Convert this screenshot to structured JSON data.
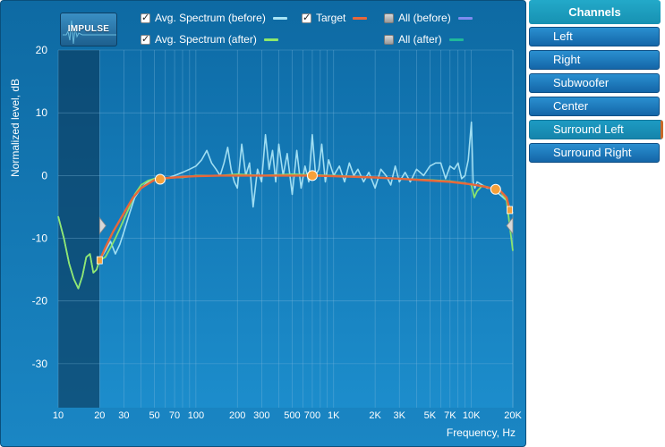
{
  "toolbar": {
    "impulse_label": "IMPULSE"
  },
  "legend": [
    {
      "label": "Avg. Spectrum (before)",
      "checked": true,
      "color": "#a8e4f5"
    },
    {
      "label": "Target",
      "checked": true,
      "color": "#e8673a"
    },
    {
      "label": "All (before)",
      "checked": false,
      "color": "#7f8cf0"
    },
    {
      "label": "Avg. Spectrum (after)",
      "checked": true,
      "color": "#8ee86a"
    },
    {
      "label": "All (after)",
      "checked": false,
      "color": "#1fb89a"
    }
  ],
  "channels": {
    "header": "Channels",
    "items": [
      "Left",
      "Right",
      "Subwoofer",
      "Center",
      "Surround Left",
      "Surround Right"
    ],
    "active": "Surround Left"
  },
  "colors": {
    "panel_bg": "#1477b6",
    "grid": "#7fb9dd",
    "before": "#a8e4f5",
    "after": "#8ee86a",
    "target": "#e8673a",
    "control_point": "#f5a03a",
    "excluded_region": "#0b3f63"
  },
  "chart_data": {
    "type": "line",
    "xlabel": "Frequency, Hz",
    "ylabel": "Normalized level, dB",
    "x_scale": "log",
    "xlim": [
      10,
      20000
    ],
    "ylim": [
      -37,
      20
    ],
    "grid": true,
    "x_ticks": [
      {
        "v": 10,
        "label": "10"
      },
      {
        "v": 20,
        "label": "20"
      },
      {
        "v": 30,
        "label": "30"
      },
      {
        "v": 50,
        "label": "50"
      },
      {
        "v": 70,
        "label": "70"
      },
      {
        "v": 100,
        "label": "100"
      },
      {
        "v": 200,
        "label": "200"
      },
      {
        "v": 300,
        "label": "300"
      },
      {
        "v": 500,
        "label": "500"
      },
      {
        "v": 700,
        "label": "700"
      },
      {
        "v": 1000,
        "label": "1K"
      },
      {
        "v": 2000,
        "label": "2K"
      },
      {
        "v": 3000,
        "label": "3K"
      },
      {
        "v": 5000,
        "label": "5K"
      },
      {
        "v": 7000,
        "label": "7K"
      },
      {
        "v": 10000,
        "label": "10K"
      },
      {
        "v": 20000,
        "label": "20K"
      }
    ],
    "y_ticks": [
      {
        "v": 20,
        "label": "20"
      },
      {
        "v": 10,
        "label": "10"
      },
      {
        "v": 0,
        "label": "0"
      },
      {
        "v": -10,
        "label": "-10"
      },
      {
        "v": -20,
        "label": "-20"
      },
      {
        "v": -30,
        "label": "-30"
      }
    ],
    "excluded_ranges": [
      [
        10,
        20
      ]
    ],
    "series": [
      {
        "key": "before",
        "x": [
          10,
          11,
          12,
          13,
          14,
          15,
          16,
          17,
          18,
          19,
          20,
          22,
          24,
          26,
          28,
          30,
          33,
          36,
          40,
          45,
          50,
          55,
          60,
          70,
          80,
          90,
          100,
          110,
          120,
          130,
          140,
          150,
          160,
          170,
          180,
          190,
          200,
          215,
          230,
          245,
          260,
          280,
          300,
          320,
          340,
          360,
          380,
          400,
          430,
          460,
          500,
          540,
          580,
          620,
          660,
          700,
          740,
          780,
          820,
          870,
          920,
          1000,
          1100,
          1200,
          1300,
          1400,
          1500,
          1650,
          1800,
          2000,
          2200,
          2400,
          2600,
          2800,
          3000,
          3300,
          3600,
          4000,
          4500,
          5000,
          5500,
          6000,
          6500,
          7000,
          7500,
          8000,
          8500,
          9000,
          9500,
          10000,
          10300,
          10600,
          11000,
          12000,
          13000,
          14000,
          15000,
          16000,
          17000,
          18000,
          19000,
          20000
        ],
        "y": [
          -6.5,
          -10,
          -14,
          -16.5,
          -18,
          -16,
          -13,
          -12.5,
          -15.5,
          -15,
          -13.5,
          -12,
          -10.5,
          -12.5,
          -11,
          -9,
          -6,
          -3.5,
          -2,
          -1,
          -0.5,
          -0.3,
          -0.5,
          0,
          0.5,
          1,
          1.5,
          2.5,
          4,
          2,
          1,
          0,
          2,
          4.5,
          1,
          -1,
          -2,
          5,
          0,
          2,
          -5,
          1,
          -1,
          6.5,
          1,
          4,
          -1,
          5,
          0,
          3.5,
          -3,
          4,
          -2,
          1.5,
          -1,
          6.5,
          0,
          1,
          5,
          -1,
          2.5,
          0,
          1.5,
          -1,
          2,
          0,
          1,
          -1,
          0.5,
          -2,
          1,
          0,
          -1.5,
          1.5,
          -1,
          0.5,
          -1,
          1,
          0,
          1.5,
          2,
          2,
          -0.5,
          1.5,
          1,
          2,
          -0.5,
          0,
          2.5,
          8.5,
          -1,
          -2,
          -1,
          -1.5,
          -2,
          -2,
          -2.5,
          -3,
          -3.5,
          -4,
          -5,
          -6
        ]
      },
      {
        "key": "after",
        "x": [
          10,
          11,
          12,
          13,
          14,
          15,
          16,
          17,
          18,
          19,
          20,
          22,
          24,
          26,
          28,
          30,
          33,
          36,
          40,
          45,
          50,
          55,
          60,
          70,
          80,
          100,
          150,
          200,
          300,
          500,
          700,
          1000,
          2000,
          3000,
          5000,
          7000,
          9000,
          10000,
          10500,
          11000,
          12000,
          14000,
          16000,
          18000,
          20000
        ],
        "y": [
          -6.5,
          -10,
          -14,
          -16.5,
          -18,
          -16,
          -13,
          -12.5,
          -15.5,
          -15,
          -13.5,
          -13,
          -11.5,
          -10,
          -8.5,
          -7,
          -5,
          -3,
          -1.5,
          -0.8,
          -0.5,
          -0.4,
          -0.5,
          -0.3,
          -0.3,
          0,
          0,
          0.2,
          0,
          0.2,
          0.1,
          0,
          -0.3,
          -0.5,
          -0.7,
          -0.9,
          -1.2,
          -1.5,
          -3.5,
          -2.5,
          -1.6,
          -2,
          -2.3,
          -4,
          -12
        ]
      },
      {
        "key": "target",
        "x": [
          20,
          22,
          25,
          30,
          35,
          40,
          45,
          50,
          55,
          60,
          70,
          80,
          100,
          150,
          200,
          300,
          500,
          700,
          1000,
          2000,
          3000,
          5000,
          7000,
          10000,
          12000,
          14000,
          15000,
          16000,
          18000,
          19000
        ],
        "y": [
          -13.5,
          -11.5,
          -9,
          -6,
          -3.5,
          -2,
          -1.3,
          -0.7,
          -0.5,
          -0.4,
          -0.3,
          -0.2,
          -0.1,
          0,
          0,
          0,
          0,
          0,
          -0.1,
          -0.3,
          -0.5,
          -0.8,
          -1,
          -1.4,
          -1.7,
          -2,
          -2.1,
          -2.3,
          -3.5,
          -5.5
        ]
      }
    ],
    "control_points": [
      {
        "x": 20,
        "y": -13.5,
        "shape": "square"
      },
      {
        "x": 55,
        "y": -0.6,
        "shape": "circle"
      },
      {
        "x": 700,
        "y": 0,
        "shape": "circle"
      },
      {
        "x": 15000,
        "y": -2.2,
        "shape": "circle"
      },
      {
        "x": 19000,
        "y": -5.5,
        "shape": "square"
      }
    ]
  }
}
